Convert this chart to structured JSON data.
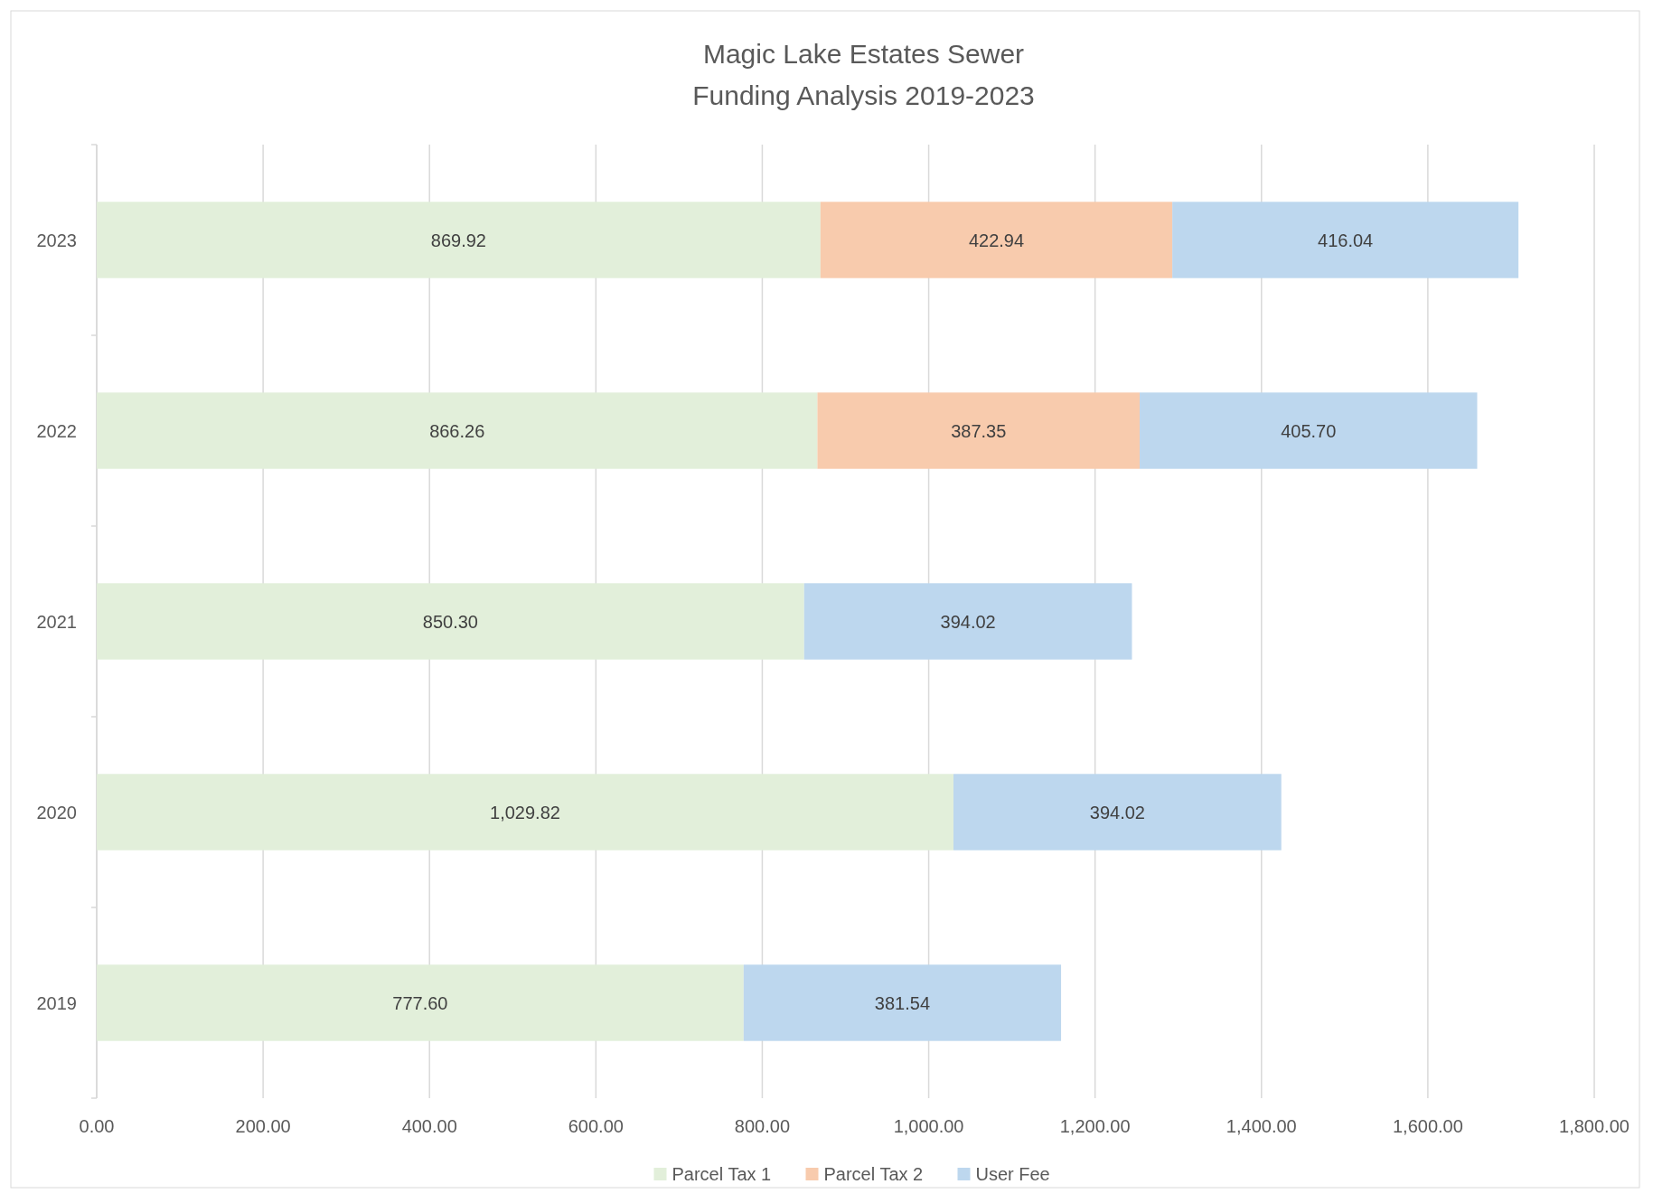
{
  "chart_data": {
    "type": "bar",
    "orientation": "horizontal",
    "stacked": true,
    "title": "Magic Lake Estates Sewer\nFunding Analysis 2019-2023",
    "categories": [
      "2023",
      "2022",
      "2021",
      "2020",
      "2019"
    ],
    "series": [
      {
        "name": "Parcel Tax 1",
        "color": "#e2efda",
        "values": [
          869.92,
          866.26,
          850.3,
          1029.82,
          777.6
        ],
        "value_labels": [
          "869.92",
          "866.26",
          "850.30",
          "1,029.82",
          "777.60"
        ]
      },
      {
        "name": "Parcel Tax 2",
        "color": "#f8cbad",
        "values": [
          422.94,
          387.35,
          null,
          null,
          null
        ],
        "value_labels": [
          "422.94",
          "387.35",
          null,
          null,
          null
        ]
      },
      {
        "name": "User Fee",
        "color": "#bdd7ee",
        "values": [
          416.04,
          405.7,
          394.02,
          394.02,
          381.54
        ],
        "value_labels": [
          "416.04",
          "405.70",
          "394.02",
          "394.02",
          "381.54"
        ]
      }
    ],
    "xlim": [
      0,
      1800
    ],
    "xticks": [
      {
        "value": 0,
        "label": "0.00"
      },
      {
        "value": 200,
        "label": "200.00"
      },
      {
        "value": 400,
        "label": "400.00"
      },
      {
        "value": 600,
        "label": "600.00"
      },
      {
        "value": 800,
        "label": "800.00"
      },
      {
        "value": 1000,
        "label": "1,000.00"
      },
      {
        "value": 1200,
        "label": "1,200.00"
      },
      {
        "value": 1400,
        "label": "1,400.00"
      },
      {
        "value": 1600,
        "label": "1,600.00"
      },
      {
        "value": 1800,
        "label": "1,800.00"
      }
    ],
    "grid": "x",
    "legend": "bottom"
  }
}
